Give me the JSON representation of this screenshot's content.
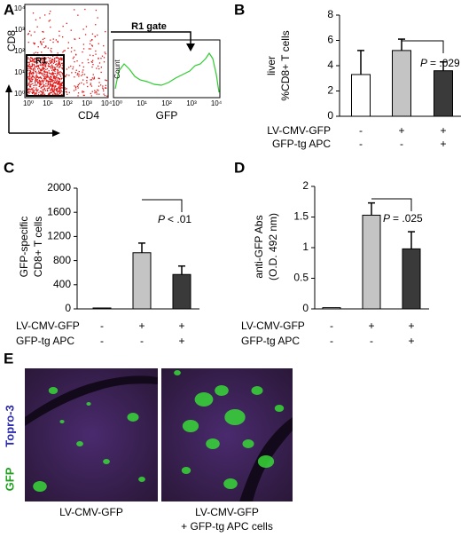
{
  "figure": {
    "panel_a": {
      "panel": "A",
      "dot_plot": {
        "y_label": "CD8",
        "x_label": "CD4",
        "gate": "R1",
        "ticks": [
          "10⁰",
          "10¹",
          "10²",
          "10³",
          "10⁴"
        ]
      },
      "histogram": {
        "gate_label": "R1 gate",
        "x_label": "GFP",
        "y_label": "Count"
      }
    },
    "panel_e": {
      "panel": "E",
      "stain_labels": [
        "GFP",
        "Topro-3"
      ],
      "captions": [
        [
          "LV-CMV-GFP"
        ],
        [
          "LV-CMV-GFP",
          "+ GFP-tg APC cells"
        ]
      ]
    }
  },
  "chart_data": [
    {
      "type": "bar",
      "panel": "B",
      "y_label": [
        "liver",
        "%CD8+ T cells"
      ],
      "values": [
        3.3,
        5.2,
        3.6
      ],
      "errors": [
        1.9,
        0.9,
        0.7
      ],
      "colors": [
        "#ffffff",
        "#c4c4c4",
        "#3a3a3a"
      ],
      "ylim": [
        0,
        8
      ],
      "yticks": [
        0,
        2,
        4,
        6,
        8
      ],
      "conditions": [
        {
          "name": "LV-CMV-GFP",
          "signs": [
            "-",
            "+",
            "+"
          ]
        },
        {
          "name": "GFP-tg APC",
          "signs": [
            "-",
            "-",
            "+"
          ]
        }
      ],
      "annotation": {
        "symbol": "P",
        "text": "= .029"
      }
    },
    {
      "type": "bar",
      "panel": "C",
      "y_label": [
        "GFP-specific",
        "CD8+ T cells"
      ],
      "values": [
        15,
        930,
        570
      ],
      "errors": [
        null,
        160,
        140
      ],
      "colors": [
        "#ffffff",
        "#c4c4c4",
        "#3a3a3a"
      ],
      "ylim": [
        0,
        2000
      ],
      "yticks": [
        0,
        400,
        800,
        1200,
        1600,
        2000
      ],
      "conditions": [
        {
          "name": "LV-CMV-GFP",
          "signs": [
            "-",
            "+",
            "+"
          ]
        },
        {
          "name": "GFP-tg APC",
          "signs": [
            "-",
            "-",
            "+"
          ]
        }
      ],
      "annotation": {
        "symbol": "P",
        "text": "< .01"
      }
    },
    {
      "type": "bar",
      "panel": "D",
      "y_label": [
        "anti-GFP Abs",
        "(O.D. 492 nm)"
      ],
      "values": [
        0.02,
        1.53,
        0.98
      ],
      "errors": [
        null,
        0.2,
        0.28
      ],
      "colors": [
        "#ffffff",
        "#c4c4c4",
        "#3a3a3a"
      ],
      "ylim": [
        0,
        2
      ],
      "yticks": [
        0,
        0.5,
        1,
        1.5,
        2
      ],
      "conditions": [
        {
          "name": "LV-CMV-GFP",
          "signs": [
            "-",
            "+",
            "+"
          ]
        },
        {
          "name": "GFP-tg APC",
          "signs": [
            "-",
            "-",
            "+"
          ]
        }
      ],
      "annotation": {
        "symbol": "P",
        "text": "= .025"
      }
    }
  ]
}
